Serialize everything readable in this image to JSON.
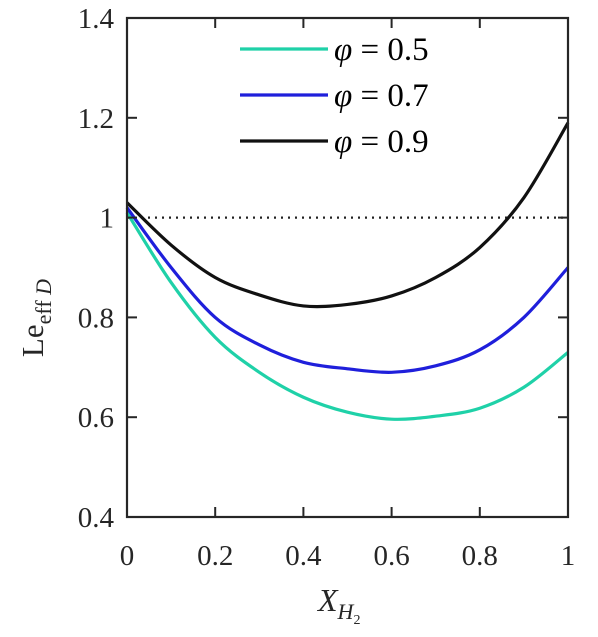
{
  "chart_data": {
    "type": "line",
    "x": [
      0,
      0.1,
      0.2,
      0.3,
      0.4,
      0.5,
      0.6,
      0.7,
      0.8,
      0.9,
      1.0
    ],
    "series": [
      {
        "name": "φ = 0.5",
        "symbol": "φ",
        "value_label": "= 0.5",
        "color": "#1fd1a8",
        "values": [
          1.01,
          0.87,
          0.76,
          0.69,
          0.64,
          0.61,
          0.596,
          0.602,
          0.618,
          0.66,
          0.73
        ]
      },
      {
        "name": "φ = 0.7",
        "symbol": "φ",
        "value_label": "= 0.7",
        "color": "#1f1fdb",
        "values": [
          1.02,
          0.9,
          0.8,
          0.745,
          0.71,
          0.697,
          0.69,
          0.703,
          0.735,
          0.8,
          0.9
        ]
      },
      {
        "name": "φ = 0.9",
        "symbol": "φ",
        "value_label": "= 0.9",
        "color": "#111111",
        "values": [
          1.03,
          0.945,
          0.88,
          0.845,
          0.823,
          0.826,
          0.843,
          0.88,
          0.94,
          1.04,
          1.19
        ]
      }
    ],
    "reference_line": {
      "y": 1.0,
      "style": "dotted"
    },
    "xlim": [
      0,
      1
    ],
    "ylim": [
      0.4,
      1.4
    ],
    "xticks": [
      "0",
      "0.2",
      "0.4",
      "0.6",
      "0.8",
      "1"
    ],
    "xtick_values": [
      0,
      0.2,
      0.4,
      0.6,
      0.8,
      1.0
    ],
    "yticks": [
      "0.4",
      "0.6",
      "0.8",
      "1",
      "1.2",
      "1.4"
    ],
    "ytick_values": [
      0.4,
      0.6,
      0.8,
      1.0,
      1.2,
      1.4
    ],
    "xlabel": {
      "main": "X",
      "subscript": "H",
      "subsubscript": "2"
    },
    "ylabel": {
      "main": "Le",
      "subscript": "eff",
      "suffix": "D"
    },
    "legend_position": "top-center",
    "grid": false
  }
}
